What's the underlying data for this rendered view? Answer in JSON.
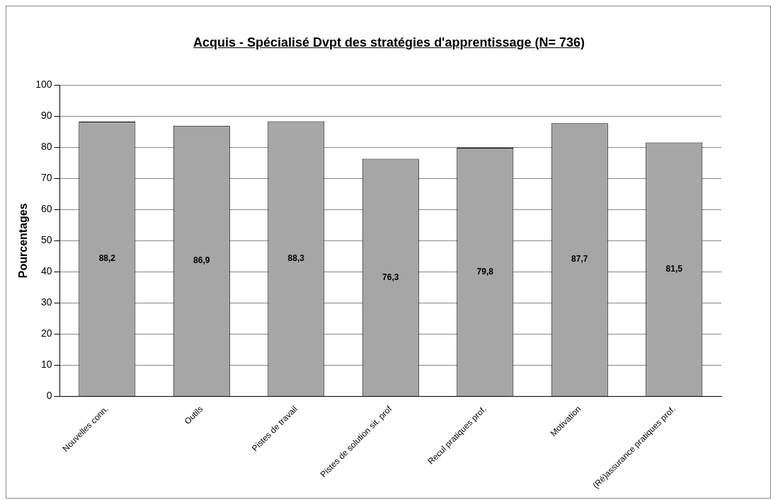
{
  "chart_data": {
    "type": "bar",
    "title": "Acquis - Spécialisé Dvpt des stratégies d'apprentissage (N= 736)",
    "ylabel": "Pourcentages",
    "categories": [
      "Nouvelles conn.",
      "Outils",
      "Pistes de travail",
      "Pistes de solution sit. prof",
      "Recul pratiques prof.",
      "Motivation",
      "(Ré)assurance pratiques prof."
    ],
    "values": [
      88.2,
      86.9,
      88.3,
      76.3,
      79.8,
      87.7,
      81.5
    ],
    "value_labels": [
      "88,2",
      "86,9",
      "88,3",
      "76,3",
      "79,8",
      "87,7",
      "81,5"
    ],
    "color": "#a6a6a6",
    "ylim": [
      0,
      100
    ],
    "yticks": [
      0,
      10,
      20,
      30,
      40,
      50,
      60,
      70,
      80,
      90,
      100
    ],
    "grid": "y",
    "legend": false
  }
}
